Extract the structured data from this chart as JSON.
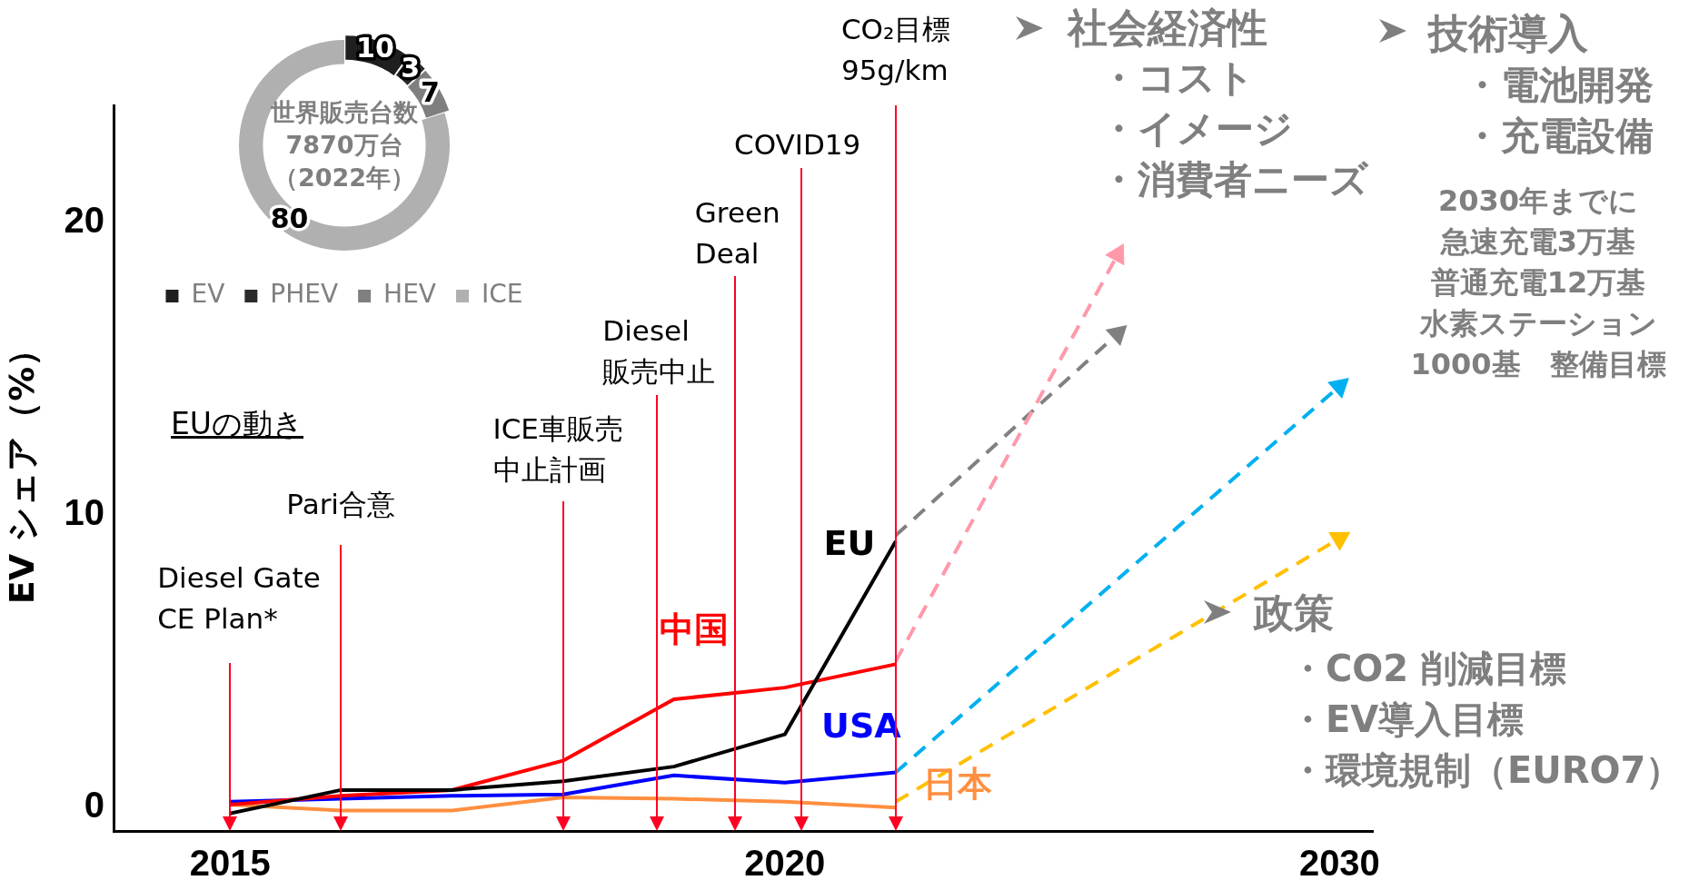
{
  "chart_data": [
    {
      "type": "line",
      "ylabel": "EV シェア（%）",
      "categories": [
        "2015",
        null,
        null,
        null,
        null,
        "2020",
        null,
        null,
        null,
        null,
        "2030"
      ],
      "series": [
        {
          "name": "EU",
          "color": "#000000",
          "values": [
            -0.2,
            0.6,
            0.6,
            0.9,
            1.4,
            2.5,
            9.1,
            null,
            null,
            null,
            null
          ]
        },
        {
          "name": "中国",
          "color": "#ff0000",
          "values": [
            0.1,
            0.4,
            0.6,
            1.6,
            3.7,
            4.1,
            4.9,
            null,
            null,
            null,
            null
          ]
        },
        {
          "name": "USA",
          "color": "#0000ff",
          "values": [
            0.2,
            0.3,
            0.4,
            0.45,
            1.1,
            0.85,
            1.2,
            null,
            null,
            null,
            null
          ]
        },
        {
          "name": "日本",
          "color": "#ff8f40",
          "values": [
            0.1,
            -0.1,
            -0.1,
            0.35,
            0.3,
            0.2,
            0.0,
            null,
            null,
            null,
            null
          ]
        },
        {
          "color": "#ff99aa",
          "line_style": "dashed",
          "marker": "triangle",
          "values": [
            null,
            null,
            null,
            null,
            null,
            null,
            5.0,
            null,
            18.9,
            null,
            null
          ]
        },
        {
          "color": "#808080",
          "line_style": "dashed",
          "marker": "triangle",
          "values": [
            null,
            null,
            null,
            null,
            null,
            null,
            9.3,
            null,
            16.2,
            null,
            null
          ]
        },
        {
          "color": "#00b0f0",
          "line_style": "dashed",
          "marker": "triangle",
          "values": [
            null,
            null,
            null,
            null,
            null,
            null,
            1.2,
            null,
            null,
            null,
            14.4
          ]
        },
        {
          "color": "#ffc000",
          "line_style": "dashed",
          "marker": "triangle",
          "values": [
            null,
            null,
            null,
            null,
            null,
            null,
            0.2,
            null,
            null,
            null,
            9.2
          ]
        }
      ],
      "ylim": [
        -0.8,
        24
      ],
      "yticks": [
        0,
        10,
        20
      ],
      "marker": "none",
      "line_style": "solid",
      "annotations": [
        "社会経済性",
        "・コスト",
        "・イメージ",
        "・消費者ニーズ",
        "技術導入",
        "・電池開発",
        "・充電設備",
        "2030年までに",
        "急速充電3万基",
        "普通充電12万基",
        "水素ステーション",
        "1000基　整備目標",
        "政策",
        "・CO2 削減目標",
        "・EV導入目標",
        "・環境規制（EURO7）",
        "EUの動き",
        "Diesel Gate\nCE Plan*",
        "Pari合意",
        "ICE車販売中止計画",
        "Diesel\n販売中止",
        "Green\nDeal",
        "COVID19",
        "CO₂目標\n95g/km"
      ]
    },
    {
      "type": "donut",
      "title": "世界販売台数7870万台（2022年）",
      "categories": [
        "EV",
        "PHEV",
        "HEV",
        "ICE"
      ],
      "values": [
        10,
        3,
        7,
        80
      ],
      "colors": [
        "#1f1f1f",
        "#2b2b2b",
        "#7f7f7f",
        "#b0b0b0"
      ],
      "legend": "bottom",
      "data_labels": true
    }
  ]
}
